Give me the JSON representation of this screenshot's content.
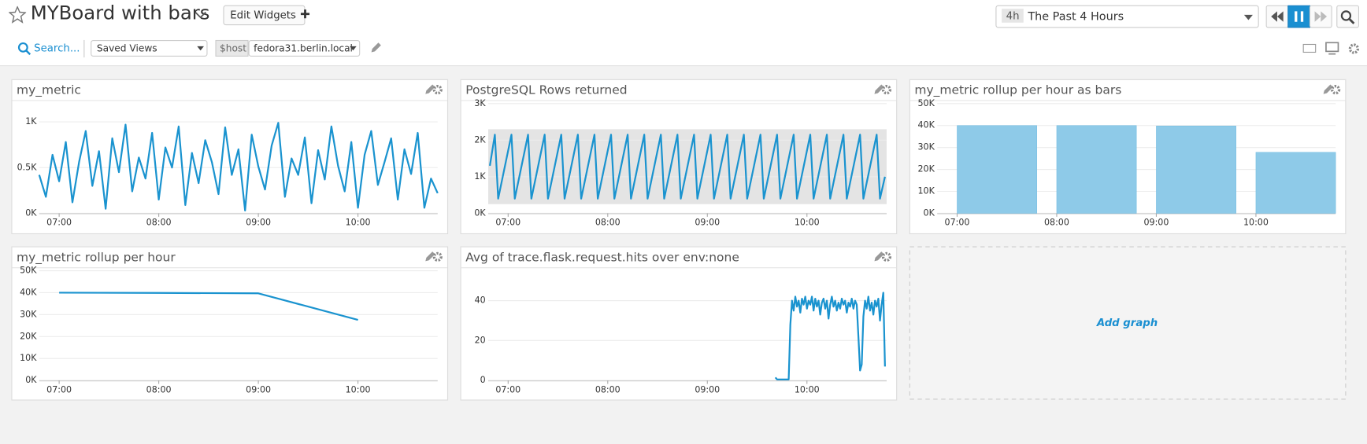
{
  "header": {
    "title": "MYBoard with bars",
    "edit_button": "Edit Widgets",
    "time_badge": "4h",
    "time_range": "The Past 4 Hours",
    "search": "Search...",
    "saved_views": "Saved Views",
    "variable_name": "$host",
    "variable_value": "fedora31.berlin.local"
  },
  "add_graph": "Add graph",
  "chart_data": [
    {
      "type": "line",
      "title": "my_metric",
      "color": "#1a93cf",
      "x": [
        "06:48",
        "06:52",
        "06:56",
        "07:00",
        "07:04",
        "07:08",
        "07:12",
        "07:16",
        "07:20",
        "07:24",
        "07:28",
        "07:32",
        "07:36",
        "07:40",
        "07:44",
        "07:48",
        "07:52",
        "07:56",
        "08:00",
        "08:04",
        "08:08",
        "08:12",
        "08:16",
        "08:20",
        "08:24",
        "08:28",
        "08:32",
        "08:36",
        "08:40",
        "08:44",
        "08:48",
        "08:52",
        "08:56",
        "09:00",
        "09:04",
        "09:08",
        "09:12",
        "09:16",
        "09:20",
        "09:24",
        "09:28",
        "09:32",
        "09:36",
        "09:40",
        "09:44",
        "09:48",
        "09:52",
        "09:56",
        "10:00",
        "10:04",
        "10:08",
        "10:12",
        "10:16",
        "10:20",
        "10:24",
        "10:28",
        "10:32",
        "10:36",
        "10:40",
        "10:44",
        "10:48"
      ],
      "values": [
        420,
        180,
        640,
        350,
        780,
        120,
        560,
        900,
        300,
        680,
        50,
        820,
        450,
        970,
        240,
        610,
        380,
        880,
        150,
        720,
        500,
        950,
        90,
        660,
        330,
        800,
        560,
        210,
        940,
        420,
        700,
        30,
        860,
        510,
        260,
        740,
        990,
        180,
        600,
        420,
        830,
        110,
        690,
        370,
        950,
        520,
        240,
        780,
        60,
        640,
        900,
        310,
        560,
        820,
        150,
        700,
        430,
        880,
        60,
        380,
        220
      ],
      "xlim": [
        "06:48",
        "10:48"
      ],
      "xticks": [
        "07:00",
        "08:00",
        "09:00",
        "10:00"
      ],
      "ylim": [
        0,
        1200
      ],
      "yticks": [
        {
          "value": 0,
          "label": "0K"
        },
        {
          "value": 500,
          "label": "0.5K"
        },
        {
          "value": 1000,
          "label": "1K"
        }
      ],
      "grid": true
    },
    {
      "type": "line",
      "title": "PostgreSQL Rows returned",
      "color": "#1a93cf",
      "band": {
        "low": 250,
        "high": 2300,
        "color": "#e4e4e4"
      },
      "x": [
        "06:49",
        "06:52",
        "06:54",
        "07:02",
        "07:04",
        "07:12",
        "07:14",
        "07:22",
        "07:24",
        "07:32",
        "07:34",
        "07:42",
        "07:44",
        "07:52",
        "07:54",
        "08:02",
        "08:04",
        "08:12",
        "08:14",
        "08:22",
        "08:24",
        "08:32",
        "08:34",
        "08:42",
        "08:44",
        "08:52",
        "08:54",
        "09:02",
        "09:04",
        "09:12",
        "09:14",
        "09:22",
        "09:24",
        "09:32",
        "09:34",
        "09:42",
        "09:44",
        "09:52",
        "09:54",
        "10:02",
        "10:04",
        "10:12",
        "10:14",
        "10:22",
        "10:24",
        "10:32",
        "10:34",
        "10:42",
        "10:44",
        "10:47"
      ],
      "values": [
        1300,
        2150,
        400,
        2150,
        400,
        2150,
        400,
        2150,
        400,
        2150,
        400,
        2150,
        400,
        2150,
        400,
        2150,
        400,
        2150,
        400,
        2150,
        400,
        2150,
        400,
        2150,
        400,
        2150,
        400,
        2150,
        400,
        2150,
        400,
        2150,
        400,
        2150,
        400,
        2150,
        400,
        2150,
        400,
        2150,
        400,
        2150,
        400,
        2150,
        400,
        2150,
        400,
        2150,
        400,
        1000
      ],
      "xlim": [
        "06:48",
        "10:48"
      ],
      "xticks": [
        "07:00",
        "08:00",
        "09:00",
        "10:00"
      ],
      "ylim": [
        0,
        3000
      ],
      "yticks": [
        {
          "value": 0,
          "label": "0K"
        },
        {
          "value": 1000,
          "label": "1K"
        },
        {
          "value": 2000,
          "label": "2K"
        },
        {
          "value": 3000,
          "label": "3K"
        }
      ],
      "grid": true
    },
    {
      "type": "bar",
      "title": "my_metric rollup per hour as bars",
      "color": "#8ecae8",
      "x": [
        "07:00",
        "08:00",
        "09:00",
        "10:00"
      ],
      "values": [
        40000,
        40000,
        39800,
        27800
      ],
      "xlim": [
        "06:48",
        "10:48"
      ],
      "xticks": [
        "07:00",
        "08:00",
        "09:00",
        "10:00"
      ],
      "ylim": [
        0,
        50000
      ],
      "yticks": [
        {
          "value": 0,
          "label": "0K"
        },
        {
          "value": 10000,
          "label": "10K"
        },
        {
          "value": 20000,
          "label": "20K"
        },
        {
          "value": 30000,
          "label": "30K"
        },
        {
          "value": 40000,
          "label": "40K"
        },
        {
          "value": 50000,
          "label": "50K"
        }
      ],
      "grid": true
    },
    {
      "type": "line",
      "title": "my_metric rollup per hour",
      "color": "#1a93cf",
      "x": [
        "07:00",
        "08:00",
        "09:00",
        "10:00"
      ],
      "values": [
        40000,
        39900,
        39700,
        27600
      ],
      "xlim": [
        "06:48",
        "10:48"
      ],
      "xticks": [
        "07:00",
        "08:00",
        "09:00",
        "10:00"
      ],
      "ylim": [
        0,
        50000
      ],
      "yticks": [
        {
          "value": 0,
          "label": "0K"
        },
        {
          "value": 10000,
          "label": "10K"
        },
        {
          "value": 20000,
          "label": "20K"
        },
        {
          "value": 30000,
          "label": "30K"
        },
        {
          "value": 40000,
          "label": "40K"
        },
        {
          "value": 50000,
          "label": "50K"
        }
      ],
      "grid": true
    },
    {
      "type": "line",
      "title": "Avg of trace.flask.request.hits over env:none",
      "color": "#1a93cf",
      "x": [
        "09:41",
        "09:42",
        "09:43",
        "09:44",
        "09:45",
        "09:46",
        "09:47",
        "09:48",
        "09:49",
        "09:50",
        "09:51",
        "09:52",
        "09:53",
        "09:54",
        "09:55",
        "09:56",
        "09:57",
        "09:58",
        "09:59",
        "10:00",
        "10:01",
        "10:02",
        "10:03",
        "10:04",
        "10:05",
        "10:06",
        "10:07",
        "10:08",
        "10:09",
        "10:10",
        "10:11",
        "10:12",
        "10:13",
        "10:14",
        "10:15",
        "10:16",
        "10:17",
        "10:18",
        "10:19",
        "10:20",
        "10:21",
        "10:22",
        "10:23",
        "10:24",
        "10:25",
        "10:26",
        "10:27",
        "10:28",
        "10:29",
        "10:30",
        "10:31",
        "10:32",
        "10:33",
        "10:34",
        "10:35",
        "10:36",
        "10:37",
        "10:38",
        "10:39",
        "10:40",
        "10:41",
        "10:42",
        "10:43",
        "10:44",
        "10:45",
        "10:46",
        "10:47"
      ],
      "values": [
        1.5,
        0.5,
        0.5,
        0.5,
        0.5,
        0.5,
        0.5,
        0.5,
        0.5,
        28,
        40,
        35,
        42,
        37,
        40,
        34,
        41,
        38,
        42,
        36,
        40,
        38,
        42,
        35,
        41,
        37,
        40,
        33,
        39,
        41,
        36,
        40,
        31,
        38,
        42,
        37,
        40,
        35,
        39,
        36,
        41,
        38,
        40,
        34,
        39,
        37,
        41,
        36,
        40,
        38,
        22,
        5,
        8,
        32,
        40,
        36,
        42,
        35,
        39,
        33,
        40,
        37,
        41,
        30,
        38,
        44,
        7
      ],
      "xlim": [
        "06:48",
        "10:48"
      ],
      "xticks": [
        "07:00",
        "08:00",
        "09:00",
        "10:00"
      ],
      "ylim": [
        0,
        55
      ],
      "yticks": [
        0,
        20,
        40
      ],
      "grid": true
    }
  ]
}
